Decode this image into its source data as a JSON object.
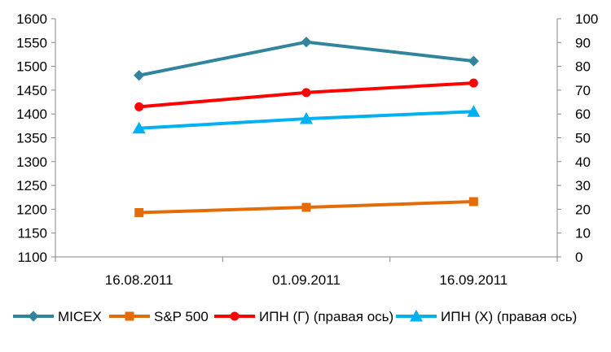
{
  "chart_data": {
    "type": "line",
    "categories": [
      "16.08.2011",
      "01.09.2011",
      "16.09.2011"
    ],
    "left_axis": {
      "min": 1100,
      "max": 1600,
      "step": 50
    },
    "right_axis": {
      "min": 0,
      "max": 100,
      "step": 10
    },
    "grid": false,
    "legend_position": "bottom",
    "series": [
      {
        "name": "MICEX",
        "axis": "left",
        "color": "#31849B",
        "marker": "diamond",
        "values": [
          1481,
          1551,
          1511
        ]
      },
      {
        "name": "S&P 500",
        "axis": "left",
        "color": "#E36C09",
        "marker": "square",
        "values": [
          1193,
          1204,
          1216
        ]
      },
      {
        "name": "ИПН (Г) (правая ось)",
        "axis": "right",
        "color": "#FF0000",
        "marker": "circle",
        "values": [
          63,
          69,
          73
        ]
      },
      {
        "name": "ИПН (Х) (правая ось)",
        "axis": "right",
        "color": "#00B0F0",
        "marker": "triangle",
        "values": [
          54,
          58,
          61
        ]
      }
    ]
  }
}
